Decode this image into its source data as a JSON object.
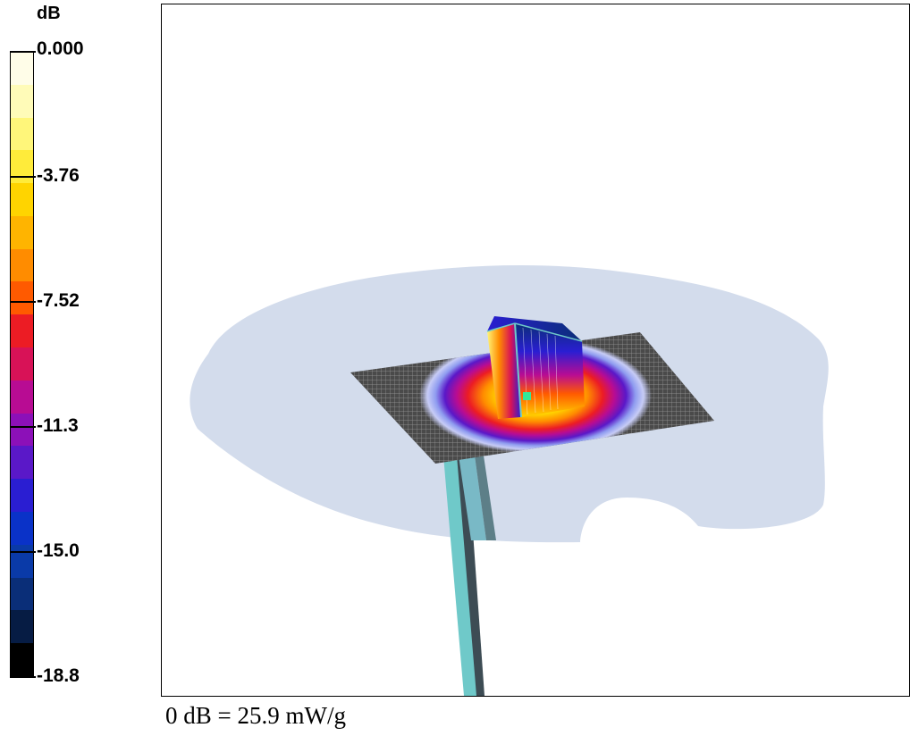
{
  "legend": {
    "unit": "dB",
    "tick_labels": [
      "0.000",
      "-3.76",
      "-7.52",
      "-11.3",
      "-15.0",
      "-18.8"
    ],
    "colors_top_to_bottom": [
      "#fffde8",
      "#fffbb8",
      "#fff67a",
      "#ffeb3a",
      "#ffd400",
      "#ffb400",
      "#ff8c00",
      "#ff5a00",
      "#ec1c24",
      "#d81257",
      "#b80c93",
      "#8c10b8",
      "#5a18c8",
      "#2a1ed2",
      "#0a32c8",
      "#0a3aa8",
      "#0a2e78",
      "#061c44",
      "#000000"
    ]
  },
  "caption": "0 dB = 25.9 mW/g",
  "view": {
    "background": "#ffffff",
    "phantom_color": "#d3dcec",
    "grid_color": "#3a3a3a",
    "probe_color": "#6fc9c9"
  }
}
